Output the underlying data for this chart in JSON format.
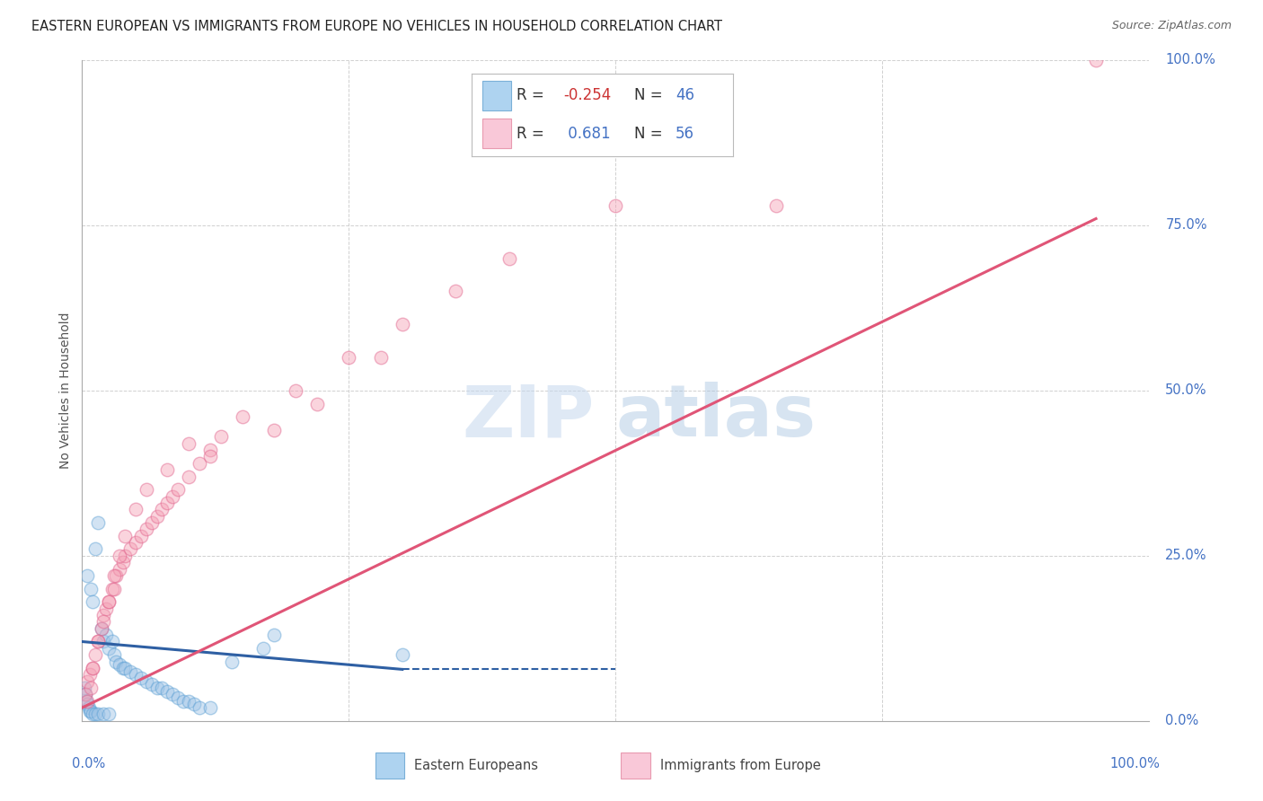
{
  "title": "EASTERN EUROPEAN VS IMMIGRANTS FROM EUROPE NO VEHICLES IN HOUSEHOLD CORRELATION CHART",
  "source": "Source: ZipAtlas.com",
  "ylabel": "No Vehicles in Household",
  "ytick_labels": [
    "0.0%",
    "25.0%",
    "50.0%",
    "75.0%",
    "100.0%"
  ],
  "ytick_values": [
    0.0,
    25.0,
    50.0,
    75.0,
    100.0
  ],
  "xtick_labels": [
    "0.0%",
    "100.0%"
  ],
  "legend_label_blue": "Eastern Europeans",
  "legend_label_pink": "Immigrants from Europe",
  "r_blue": -0.254,
  "n_blue": 46,
  "r_pink": 0.681,
  "n_pink": 56,
  "blue_scatter_x": [
    0.5,
    0.8,
    1.0,
    1.2,
    1.5,
    1.8,
    2.0,
    2.2,
    2.5,
    2.8,
    3.0,
    3.2,
    3.5,
    3.8,
    4.0,
    4.5,
    5.0,
    5.5,
    6.0,
    6.5,
    7.0,
    7.5,
    8.0,
    8.5,
    9.0,
    9.5,
    10.0,
    10.5,
    11.0,
    12.0,
    0.2,
    0.3,
    0.4,
    0.5,
    0.6,
    0.7,
    0.8,
    1.0,
    1.2,
    1.5,
    2.0,
    2.5,
    30.0,
    17.0,
    14.0,
    18.0
  ],
  "blue_scatter_y": [
    22.0,
    20.0,
    18.0,
    26.0,
    30.0,
    14.0,
    12.0,
    13.0,
    11.0,
    12.0,
    10.0,
    9.0,
    8.5,
    8.0,
    8.0,
    7.5,
    7.0,
    6.5,
    6.0,
    5.5,
    5.0,
    5.0,
    4.5,
    4.0,
    3.5,
    3.0,
    3.0,
    2.5,
    2.0,
    2.0,
    5.0,
    4.0,
    3.0,
    2.5,
    2.0,
    1.5,
    1.5,
    1.0,
    1.0,
    1.0,
    1.0,
    1.0,
    10.0,
    11.0,
    9.0,
    13.0
  ],
  "pink_scatter_x": [
    0.3,
    0.5,
    0.7,
    1.0,
    1.2,
    1.5,
    1.8,
    2.0,
    2.2,
    2.5,
    2.8,
    3.0,
    3.2,
    3.5,
    3.8,
    4.0,
    4.5,
    5.0,
    5.5,
    6.0,
    6.5,
    7.0,
    7.5,
    8.0,
    8.5,
    9.0,
    10.0,
    11.0,
    12.0,
    13.0,
    0.5,
    0.8,
    1.0,
    1.5,
    2.0,
    2.5,
    3.0,
    3.5,
    4.0,
    5.0,
    6.0,
    8.0,
    10.0,
    15.0,
    20.0,
    25.0,
    30.0,
    35.0,
    40.0,
    50.0,
    18.0,
    22.0,
    95.0,
    65.0,
    28.0,
    12.0
  ],
  "pink_scatter_y": [
    4.0,
    6.0,
    7.0,
    8.0,
    10.0,
    12.0,
    14.0,
    16.0,
    17.0,
    18.0,
    20.0,
    20.0,
    22.0,
    23.0,
    24.0,
    25.0,
    26.0,
    27.0,
    28.0,
    29.0,
    30.0,
    31.0,
    32.0,
    33.0,
    34.0,
    35.0,
    37.0,
    39.0,
    41.0,
    43.0,
    3.0,
    5.0,
    8.0,
    12.0,
    15.0,
    18.0,
    22.0,
    25.0,
    28.0,
    32.0,
    35.0,
    38.0,
    42.0,
    46.0,
    50.0,
    55.0,
    60.0,
    65.0,
    70.0,
    78.0,
    44.0,
    48.0,
    100.0,
    78.0,
    55.0,
    40.0
  ],
  "blue_line": {
    "x0": 0,
    "x1": 30,
    "y0": 12.0,
    "y1": 7.8,
    "solid_end": 30,
    "dash_end": 50
  },
  "pink_line": {
    "x0": 0,
    "x1": 95,
    "y0": 2.0,
    "y1": 76.0
  },
  "watermark_zip": "ZIP",
  "watermark_atlas": "atlas",
  "bg_color": "#ffffff",
  "scatter_alpha": 0.45,
  "scatter_size": 110,
  "blue_color": "#9dc3e6",
  "pink_color": "#f4a0b5",
  "blue_line_color": "#2e5fa3",
  "pink_line_color": "#e05577",
  "grid_color": "#d0d0d0",
  "xlim": [
    0,
    100
  ],
  "ylim": [
    0,
    100
  ],
  "title_fontsize": 10.5,
  "source_fontsize": 9,
  "axis_label_fontsize": 10,
  "tick_label_fontsize": 10.5,
  "legend_fontsize": 12
}
